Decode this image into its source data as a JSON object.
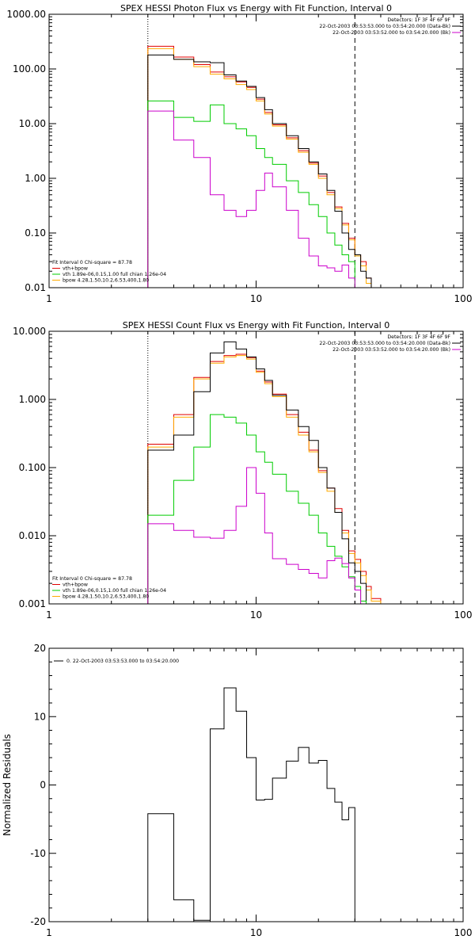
{
  "colors": {
    "data": "#000000",
    "fit_total": "#e00000",
    "vth": "#00cc00",
    "bpow": "#ffaa00",
    "background": "#cc00cc"
  },
  "chart_data": [
    {
      "type": "line",
      "step": true,
      "title": "SPEX HESSI Photon Flux vs Energy with Fit Function, Interval 0",
      "xlabel": "",
      "ylabel": "",
      "xscale": "log",
      "yscale": "log",
      "xlim": [
        1,
        100
      ],
      "ylim": [
        0.01,
        1000
      ],
      "x_ticks": [
        1,
        10,
        100
      ],
      "x_tick_labels": [
        "1",
        "10",
        "100"
      ],
      "y_ticks": [
        0.01,
        0.1,
        1,
        10,
        100,
        1000
      ],
      "y_tick_labels": [
        "0.01",
        "0.10",
        "1.00",
        "10.00",
        "100.00",
        "1000.00"
      ],
      "vlines": [
        {
          "x": 3,
          "style": "dotted"
        },
        {
          "x": 30,
          "style": "dashed"
        }
      ],
      "header_lines": [
        "Detectors: 1F 3F 4F 6F 9F",
        "22-Oct-2003 03:53:53.000 to 03:54:20.000 (Data-Bk)",
        "22-Oct-2003 03:53:52.000 to 03:54:20.000 (Bk)"
      ],
      "legend_lines": [
        "Fit Interval 0   Chi-square = 87.78",
        "vth+bpow",
        "vth 1.89e-06,0.15,1.00  full chian 1.26e-04",
        "bpow 4.28,1.50,10.2,6.53,400,1.80"
      ],
      "edges": [
        3,
        3.5,
        4,
        4.5,
        5,
        6,
        7,
        8,
        9,
        10,
        11,
        12,
        14,
        16,
        18,
        20,
        22,
        24,
        26,
        28,
        30,
        32,
        34,
        36
      ],
      "series": [
        {
          "color": "fit_total",
          "values": [
            260,
            260,
            165,
            165,
            120,
            88,
            72,
            58,
            46,
            28,
            16,
            9.5,
            5.5,
            3.2,
            1.9,
            1.1,
            0.55,
            0.3,
            0.15,
            0.08,
            0.04,
            0.03,
            0.015
          ]
        },
        {
          "color": "bpow",
          "values": [
            235,
            235,
            150,
            150,
            110,
            80,
            66,
            52,
            42,
            26,
            15,
            9,
            5.2,
            3,
            1.8,
            1,
            0.5,
            0.28,
            0.14,
            0.075,
            0.038,
            0.025,
            0.012
          ]
        },
        {
          "color": "data",
          "values": [
            180,
            180,
            150,
            150,
            135,
            130,
            78,
            60,
            48,
            30,
            18,
            10,
            6,
            3.5,
            2,
            1.2,
            0.6,
            0.25,
            0.1,
            0.05,
            0.04,
            0.02,
            0.015
          ]
        },
        {
          "color": "vth",
          "values": [
            26,
            26,
            13,
            13,
            11,
            22,
            10,
            8,
            6,
            3.5,
            2.4,
            1.8,
            0.9,
            0.55,
            0.33,
            0.2,
            0.1,
            0.06,
            0.04,
            0.03
          ]
        },
        {
          "color": "background",
          "values": [
            17,
            17,
            5,
            5,
            2.4,
            0.5,
            0.26,
            0.2,
            0.26,
            0.6,
            1.25,
            0.7,
            0.26,
            0.08,
            0.038,
            0.025,
            0.023,
            0.02,
            0.026,
            0.015
          ]
        }
      ]
    },
    {
      "type": "line",
      "step": true,
      "title": "SPEX HESSI Count Flux vs Energy with Fit Function, Interval 0",
      "xlabel": "",
      "ylabel": "",
      "xscale": "log",
      "yscale": "log",
      "xlim": [
        1,
        100
      ],
      "ylim": [
        0.001,
        10
      ],
      "x_ticks": [
        1,
        10,
        100
      ],
      "x_tick_labels": [
        "1",
        "10",
        "100"
      ],
      "y_ticks": [
        0.001,
        0.01,
        0.1,
        1,
        10
      ],
      "y_tick_labels": [
        "0.001",
        "0.010",
        "0.100",
        "1.000",
        "10.000"
      ],
      "vlines": [
        {
          "x": 3,
          "style": "dotted"
        },
        {
          "x": 30,
          "style": "dashed"
        }
      ],
      "header_lines": [
        "Detectors: 1F 3F 4F 6F 9F",
        "22-Oct-2003 03:53:53.000 to 03:54:20.000 (Data-Bk)",
        "22-Oct-2003 03:53:52.000 to 03:54:20.000 (Bk)"
      ],
      "legend_lines": [
        "Fit Interval 0   Chi-square = 87.78",
        "vth+bpow",
        "vth 1.89e-06,0.15,1.00  full chian 1.26e-04",
        "bpow 4.28,1.50,10.2,6.53,400,1.80"
      ],
      "edges": [
        3,
        4,
        5,
        6,
        7,
        8,
        9,
        10,
        11,
        12,
        14,
        16,
        18,
        20,
        22,
        24,
        26,
        28,
        30,
        32,
        34,
        36,
        38,
        40
      ],
      "series": [
        {
          "color": "fit_total",
          "values": [
            0.22,
            0.6,
            2.1,
            3.6,
            4.4,
            4.6,
            4.1,
            2.6,
            1.8,
            1.2,
            0.6,
            0.33,
            0.18,
            0.09,
            0.05,
            0.025,
            0.012,
            0.006,
            0.0045,
            0.003,
            0.0018,
            0.0012,
            0.0012
          ]
        },
        {
          "color": "bpow",
          "values": [
            0.2,
            0.55,
            2,
            3.4,
            4.2,
            4.4,
            3.9,
            2.5,
            1.7,
            1.1,
            0.55,
            0.3,
            0.17,
            0.085,
            0.045,
            0.022,
            0.011,
            0.0055,
            0.004,
            0.0026,
            0.0016,
            0.0011,
            0.0011
          ]
        },
        {
          "color": "data",
          "values": [
            0.18,
            0.3,
            1.3,
            4.8,
            7,
            5.5,
            4.2,
            2.8,
            1.9,
            1.15,
            0.7,
            0.4,
            0.25,
            0.1,
            0.05,
            0.022,
            0.009,
            0.004,
            0.003,
            0.002
          ]
        },
        {
          "color": "vth",
          "values": [
            0.02,
            0.065,
            0.2,
            0.6,
            0.55,
            0.45,
            0.3,
            0.17,
            0.12,
            0.08,
            0.045,
            0.03,
            0.02,
            0.011,
            0.007,
            0.005,
            0.0035,
            0.0025,
            0.0018,
            0.0011
          ]
        },
        {
          "color": "background",
          "values": [
            0.015,
            0.012,
            0.0095,
            0.0092,
            0.012,
            0.027,
            0.1,
            0.042,
            0.011,
            0.0046,
            0.0038,
            0.0032,
            0.0028,
            0.0024,
            0.0043,
            0.0047,
            0.0039,
            0.0024,
            0.0016
          ]
        }
      ]
    },
    {
      "type": "line",
      "step": true,
      "title": "",
      "xlabel": "",
      "ylabel": "Normalized Residuals",
      "xscale": "log",
      "yscale": "linear",
      "xlim": [
        1,
        100
      ],
      "ylim": [
        -20,
        20
      ],
      "x_ticks": [
        1,
        10,
        100
      ],
      "x_tick_labels": [
        "1",
        "10",
        "100"
      ],
      "y_ticks": [
        -20,
        -10,
        0,
        10,
        20
      ],
      "y_tick_labels": [
        "-20",
        "-10",
        "0",
        "10",
        "20"
      ],
      "legend_lines": [
        "0. 22-Oct-2003 03:53:53.000 to 03:54:20.000"
      ],
      "edges": [
        3,
        4,
        5,
        6,
        7,
        8,
        9,
        10,
        11,
        12,
        14,
        16,
        18,
        20,
        22,
        24,
        26,
        28,
        30
      ],
      "series": [
        {
          "color": "data",
          "values": [
            -4.2,
            -16.8,
            -19.8,
            8.2,
            14.2,
            10.8,
            4,
            -2.2,
            -2.1,
            1,
            3.5,
            5.5,
            3.2,
            3.6,
            -0.5,
            -2.5,
            -5.1,
            -3.3
          ]
        }
      ]
    }
  ]
}
